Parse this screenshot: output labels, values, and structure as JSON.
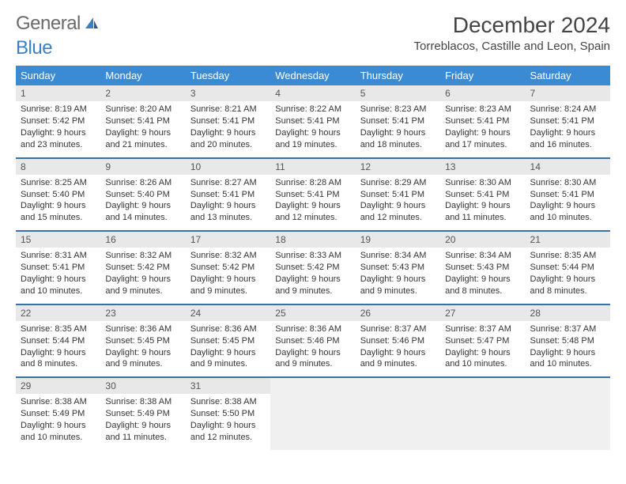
{
  "logo": {
    "text1": "General",
    "text2": "Blue"
  },
  "title": "December 2024",
  "location": "Torreblacos, Castille and Leon, Spain",
  "colors": {
    "header_bg": "#3b8bd4",
    "header_text": "#ffffff",
    "row_divider": "#3b6fa8",
    "daynum_bg": "#e8e8e8",
    "logo_gray": "#6a6a6a",
    "logo_blue": "#3b7fc4"
  },
  "weekdays": [
    "Sunday",
    "Monday",
    "Tuesday",
    "Wednesday",
    "Thursday",
    "Friday",
    "Saturday"
  ],
  "days": [
    {
      "n": "1",
      "sr": "8:19 AM",
      "ss": "5:42 PM",
      "dl": "9 hours and 23 minutes."
    },
    {
      "n": "2",
      "sr": "8:20 AM",
      "ss": "5:41 PM",
      "dl": "9 hours and 21 minutes."
    },
    {
      "n": "3",
      "sr": "8:21 AM",
      "ss": "5:41 PM",
      "dl": "9 hours and 20 minutes."
    },
    {
      "n": "4",
      "sr": "8:22 AM",
      "ss": "5:41 PM",
      "dl": "9 hours and 19 minutes."
    },
    {
      "n": "5",
      "sr": "8:23 AM",
      "ss": "5:41 PM",
      "dl": "9 hours and 18 minutes."
    },
    {
      "n": "6",
      "sr": "8:23 AM",
      "ss": "5:41 PM",
      "dl": "9 hours and 17 minutes."
    },
    {
      "n": "7",
      "sr": "8:24 AM",
      "ss": "5:41 PM",
      "dl": "9 hours and 16 minutes."
    },
    {
      "n": "8",
      "sr": "8:25 AM",
      "ss": "5:40 PM",
      "dl": "9 hours and 15 minutes."
    },
    {
      "n": "9",
      "sr": "8:26 AM",
      "ss": "5:40 PM",
      "dl": "9 hours and 14 minutes."
    },
    {
      "n": "10",
      "sr": "8:27 AM",
      "ss": "5:41 PM",
      "dl": "9 hours and 13 minutes."
    },
    {
      "n": "11",
      "sr": "8:28 AM",
      "ss": "5:41 PM",
      "dl": "9 hours and 12 minutes."
    },
    {
      "n": "12",
      "sr": "8:29 AM",
      "ss": "5:41 PM",
      "dl": "9 hours and 12 minutes."
    },
    {
      "n": "13",
      "sr": "8:30 AM",
      "ss": "5:41 PM",
      "dl": "9 hours and 11 minutes."
    },
    {
      "n": "14",
      "sr": "8:30 AM",
      "ss": "5:41 PM",
      "dl": "9 hours and 10 minutes."
    },
    {
      "n": "15",
      "sr": "8:31 AM",
      "ss": "5:41 PM",
      "dl": "9 hours and 10 minutes."
    },
    {
      "n": "16",
      "sr": "8:32 AM",
      "ss": "5:42 PM",
      "dl": "9 hours and 9 minutes."
    },
    {
      "n": "17",
      "sr": "8:32 AM",
      "ss": "5:42 PM",
      "dl": "9 hours and 9 minutes."
    },
    {
      "n": "18",
      "sr": "8:33 AM",
      "ss": "5:42 PM",
      "dl": "9 hours and 9 minutes."
    },
    {
      "n": "19",
      "sr": "8:34 AM",
      "ss": "5:43 PM",
      "dl": "9 hours and 9 minutes."
    },
    {
      "n": "20",
      "sr": "8:34 AM",
      "ss": "5:43 PM",
      "dl": "9 hours and 8 minutes."
    },
    {
      "n": "21",
      "sr": "8:35 AM",
      "ss": "5:44 PM",
      "dl": "9 hours and 8 minutes."
    },
    {
      "n": "22",
      "sr": "8:35 AM",
      "ss": "5:44 PM",
      "dl": "9 hours and 8 minutes."
    },
    {
      "n": "23",
      "sr": "8:36 AM",
      "ss": "5:45 PM",
      "dl": "9 hours and 9 minutes."
    },
    {
      "n": "24",
      "sr": "8:36 AM",
      "ss": "5:45 PM",
      "dl": "9 hours and 9 minutes."
    },
    {
      "n": "25",
      "sr": "8:36 AM",
      "ss": "5:46 PM",
      "dl": "9 hours and 9 minutes."
    },
    {
      "n": "26",
      "sr": "8:37 AM",
      "ss": "5:46 PM",
      "dl": "9 hours and 9 minutes."
    },
    {
      "n": "27",
      "sr": "8:37 AM",
      "ss": "5:47 PM",
      "dl": "9 hours and 10 minutes."
    },
    {
      "n": "28",
      "sr": "8:37 AM",
      "ss": "5:48 PM",
      "dl": "9 hours and 10 minutes."
    },
    {
      "n": "29",
      "sr": "8:38 AM",
      "ss": "5:49 PM",
      "dl": "9 hours and 10 minutes."
    },
    {
      "n": "30",
      "sr": "8:38 AM",
      "ss": "5:49 PM",
      "dl": "9 hours and 11 minutes."
    },
    {
      "n": "31",
      "sr": "8:38 AM",
      "ss": "5:50 PM",
      "dl": "9 hours and 12 minutes."
    }
  ],
  "labels": {
    "sunrise": "Sunrise:",
    "sunset": "Sunset:",
    "daylight": "Daylight:"
  }
}
